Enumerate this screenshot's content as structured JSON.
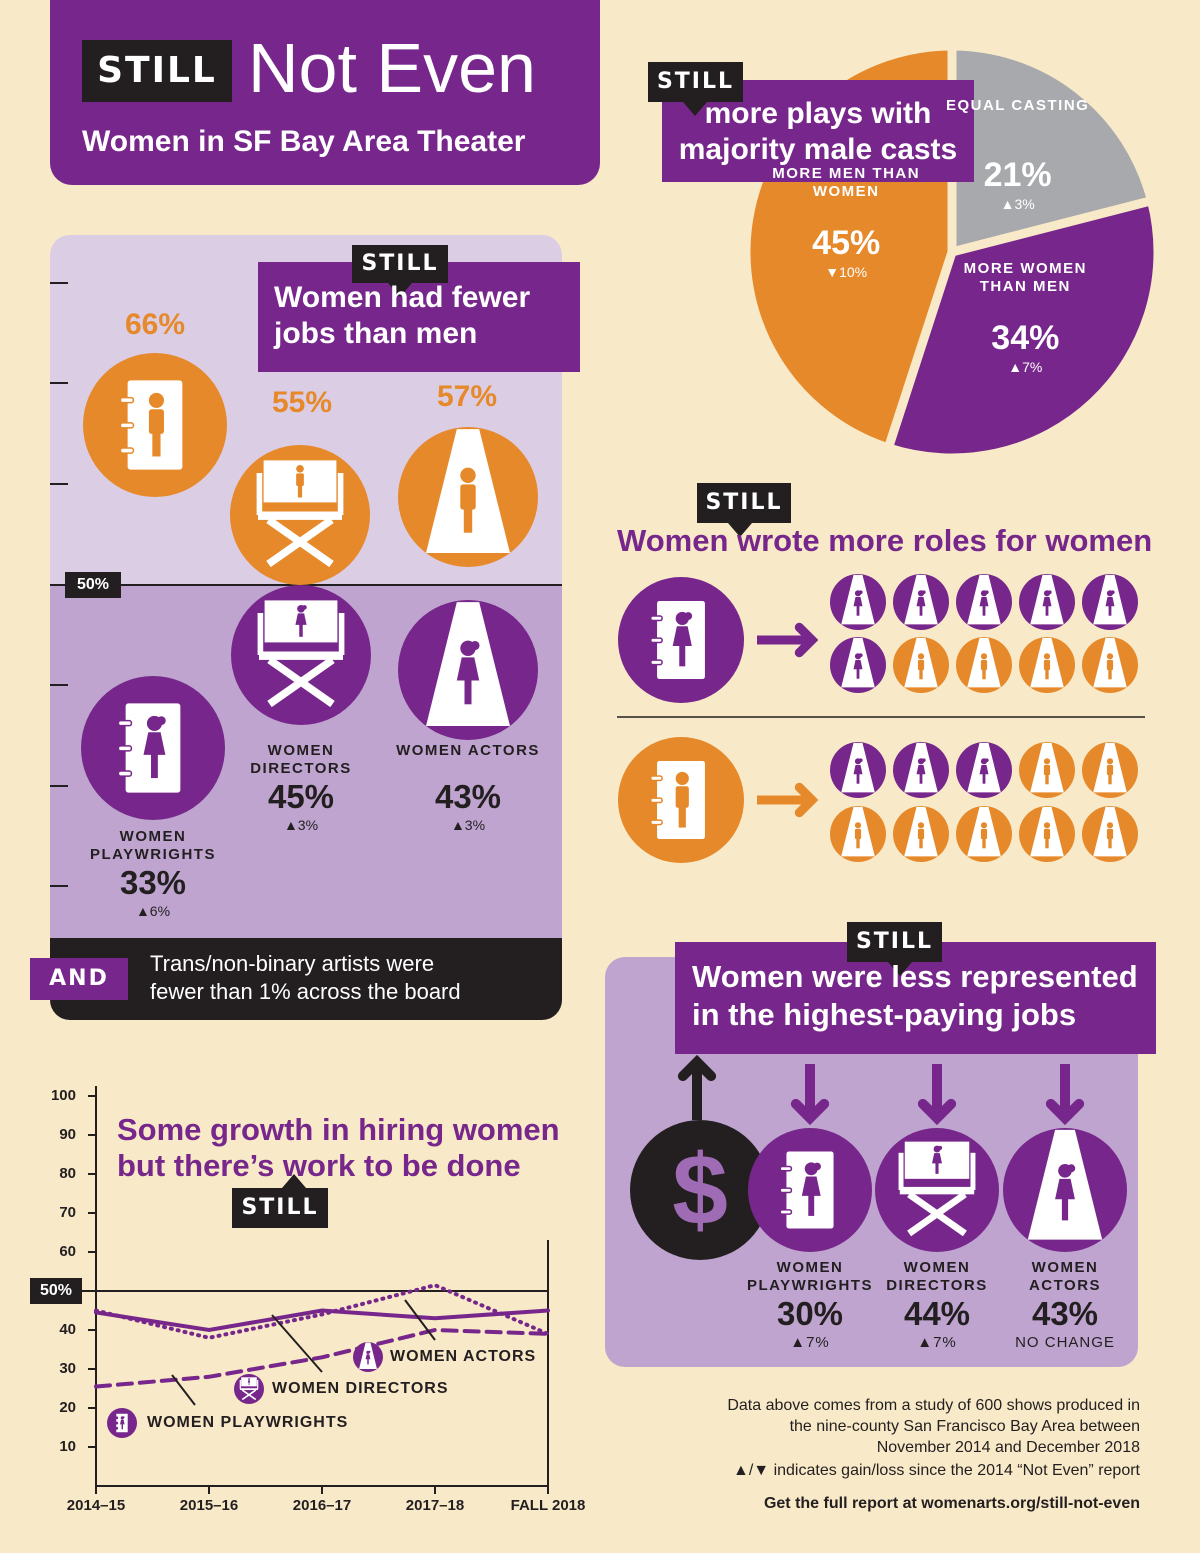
{
  "header": {
    "badge": "STILL",
    "title": "Not Even",
    "subtitle": "Women in SF Bay Area Theater"
  },
  "jobs": {
    "badge": "STILL",
    "title": "Women had fewer jobs than men",
    "midline_label": "50%",
    "roles": [
      {
        "name": "WOMEN PLAYWRIGHTS",
        "women": "33%",
        "change": "▲6%",
        "men": "66%"
      },
      {
        "name": "WOMEN DIRECTORS",
        "women": "45%",
        "change": "▲3%",
        "men": "55%"
      },
      {
        "name": "WOMEN ACTORS",
        "women": "43%",
        "change": "▲3%",
        "men": "57%"
      }
    ],
    "note": {
      "label": "AND",
      "text": "Trans/non-binary artists were fewer than 1% across the board"
    }
  },
  "roles": {
    "badge": "STILL",
    "title": "Women wrote more roles for women",
    "rows": [
      {
        "women": 6,
        "men": 4
      },
      {
        "women": 3,
        "men": 7
      }
    ]
  },
  "pay": {
    "badge": "STILL",
    "title": "Women were less represented in the highest-paying jobs",
    "symbol": "$",
    "roles": [
      {
        "name": "WOMEN PLAYWRIGHTS",
        "value": "30%",
        "change": "▲7%"
      },
      {
        "name": "WOMEN DIRECTORS",
        "value": "44%",
        "change": "▲7%"
      },
      {
        "name": "WOMEN ACTORS",
        "value": "43%",
        "change": "NO CHANGE"
      }
    ]
  },
  "chart_data": [
    {
      "type": "pie",
      "badge": "STILL",
      "title": "more plays with majority male casts",
      "categories": [
        "EQUAL CASTING",
        "MORE WOMEN THAN MEN",
        "MORE MEN THAN WOMEN"
      ],
      "values": [
        21,
        34,
        45
      ],
      "value_labels": [
        "21%",
        "34%",
        "45%"
      ],
      "changes": [
        "▲3%",
        "▲7%",
        "▼10%"
      ],
      "colors": [
        "#a7a9ac",
        "#77278b",
        "#e6892a"
      ]
    },
    {
      "type": "line",
      "title": "Some growth in hiring women but there’s work to be done",
      "badge": "STILL",
      "categories": [
        "2014–15",
        "2015–16",
        "2016–17",
        "2017–18",
        "FALL 2018"
      ],
      "series": [
        {
          "name": "WOMEN ACTORS",
          "color": "#77278b",
          "line_style": "dotted",
          "values": [
            45,
            38,
            44,
            51.5,
            39
          ]
        },
        {
          "name": "WOMEN DIRECTORS",
          "color": "#77278b",
          "line_style": "solid",
          "values": [
            44.5,
            40,
            45,
            43,
            45
          ]
        },
        {
          "name": "WOMEN PLAYWRIGHTS",
          "color": "#77278b",
          "line_style": "dashed",
          "values": [
            25.5,
            28,
            33,
            40,
            39
          ]
        }
      ],
      "ylim": [
        0,
        100
      ],
      "yticks": [
        10,
        20,
        30,
        40,
        50,
        60,
        70,
        80,
        90,
        100
      ],
      "reference_line": {
        "value": 50,
        "label": "50%"
      }
    }
  ],
  "footer": {
    "source": "Data above comes from a study of 600 shows produced in the nine-county San Francisco Bay Area between November 2014 and December 2018",
    "legend": "▲/▼ indicates gain/loss since the 2014 “Not Even” report",
    "link": "Get the full report at womenarts.org/still-not-even"
  }
}
